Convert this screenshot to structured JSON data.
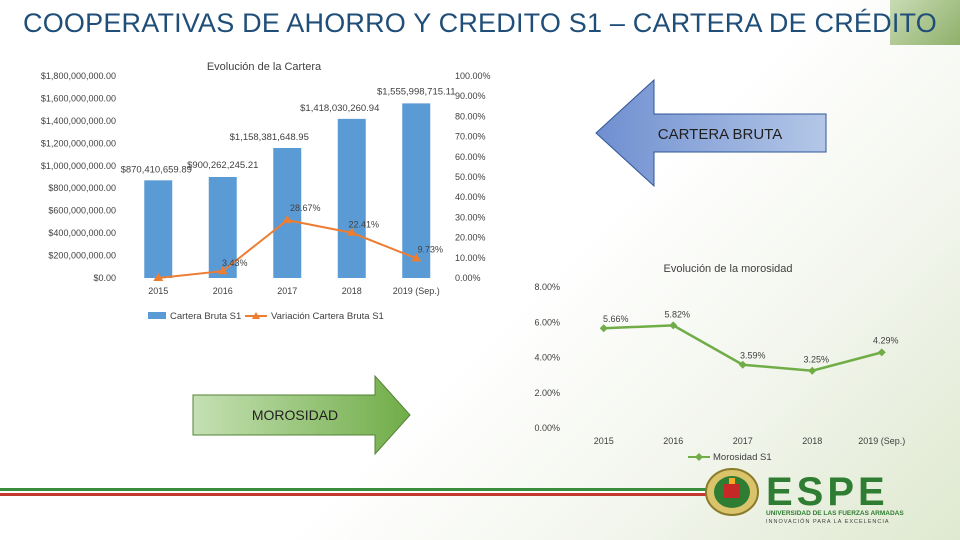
{
  "slide": {
    "title": "COOPERATIVAS DE AHORRO Y CREDITO S1 – CARTERA DE CRÉDITO"
  },
  "arrows": {
    "left_label": "CARTERA BRUTA",
    "right_label": "MOROSIDAD"
  },
  "logo": {
    "name": "ESPE",
    "subtitle": "UNIVERSIDAD DE LAS FUERZAS ARMADAS",
    "tagline": "INNOVACIÓN PARA LA EXCELENCIA"
  },
  "colors": {
    "bar": "#5b9bd5",
    "variation": "#ed7d31",
    "morosidad": "#70ad47",
    "title": "#1f4e79",
    "arrow_blue": "#8faadc",
    "arrow_green": "#a9d18e"
  },
  "chart_data": [
    {
      "type": "bar",
      "title": "Evolución de la Cartera",
      "categories": [
        "2015",
        "2016",
        "2017",
        "2018",
        "2019 (Sep.)"
      ],
      "series": [
        {
          "name": "Cartera Bruta S1",
          "type": "bar",
          "axis": "left",
          "values": [
            870410659.89,
            900262245.21,
            1158381648.95,
            1418030260.94,
            1555998715.11
          ],
          "labels": [
            "$870,410,659.89",
            "$900,262,245.21",
            "$1,158,381,648.95",
            "$1,418,030,260.94",
            "$1,555,998,715.11"
          ]
        },
        {
          "name": "Variación Cartera Bruta S1",
          "type": "line",
          "axis": "right",
          "values": [
            0.0,
            3.43,
            28.67,
            22.41,
            9.73
          ],
          "labels": [
            "",
            "3.43%",
            "28.67%",
            "22.41%",
            "9.73%"
          ]
        }
      ],
      "y_left": {
        "ylim": [
          0,
          1800000000
        ],
        "ticks": [
          "$0.00",
          "$200,000,000.00",
          "$400,000,000.00",
          "$600,000,000.00",
          "$800,000,000.00",
          "$1,000,000,000.00",
          "$1,200,000,000.00",
          "$1,400,000,000.00",
          "$1,600,000,000.00",
          "$1,800,000,000.00"
        ]
      },
      "y_right": {
        "ylim": [
          0,
          100
        ],
        "ticks": [
          "0.00%",
          "10.00%",
          "20.00%",
          "30.00%",
          "40.00%",
          "50.00%",
          "60.00%",
          "70.00%",
          "80.00%",
          "90.00%",
          "100.00%"
        ]
      },
      "grid": false,
      "legend": "bottom"
    },
    {
      "type": "line",
      "title": "Evolución de la morosidad",
      "categories": [
        "2015",
        "2016",
        "2017",
        "2018",
        "2019 (Sep.)"
      ],
      "series": [
        {
          "name": "Morosidad S1",
          "values": [
            5.66,
            5.82,
            3.59,
            3.25,
            4.29
          ],
          "labels": [
            "5.66%",
            "5.82%",
            "3.59%",
            "3.25%",
            "4.29%"
          ]
        }
      ],
      "y": {
        "ylim": [
          0,
          8
        ],
        "ticks": [
          "0.00%",
          "2.00%",
          "4.00%",
          "6.00%",
          "8.00%"
        ]
      },
      "grid": false,
      "legend": "bottom"
    }
  ]
}
